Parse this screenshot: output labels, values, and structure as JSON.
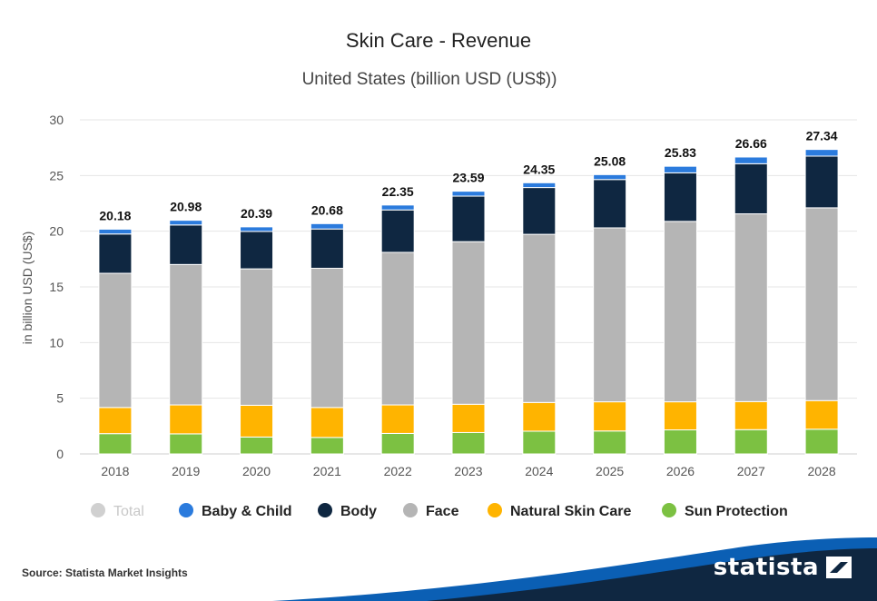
{
  "chart_data": {
    "type": "bar",
    "stacked": true,
    "title": "Skin Care - Revenue",
    "subtitle": "United States (billion USD (US$))",
    "xlabel": "",
    "ylabel": "in billion USD (US$)",
    "ylim": [
      0,
      30
    ],
    "yticks": [
      0,
      5,
      10,
      15,
      20,
      25,
      30
    ],
    "grid": true,
    "categories": [
      "2018",
      "2019",
      "2020",
      "2021",
      "2022",
      "2023",
      "2024",
      "2025",
      "2026",
      "2027",
      "2028"
    ],
    "totals": [
      "20.18",
      "20.98",
      "20.39",
      "20.68",
      "22.35",
      "23.59",
      "24.35",
      "25.08",
      "25.83",
      "26.66",
      "27.34"
    ],
    "series": [
      {
        "name": "Sun Protection",
        "color": "#7cc142",
        "values": [
          1.82,
          1.8,
          1.52,
          1.48,
          1.84,
          1.92,
          2.04,
          2.06,
          2.16,
          2.18,
          2.22
        ]
      },
      {
        "name": "Natural Skin Care",
        "color": "#ffb400",
        "values": [
          2.35,
          2.6,
          2.85,
          2.69,
          2.56,
          2.54,
          2.58,
          2.62,
          2.52,
          2.52,
          2.57
        ]
      },
      {
        "name": "Face",
        "color": "#b5b5b5",
        "values": [
          12.05,
          12.61,
          12.25,
          12.5,
          13.7,
          14.6,
          15.1,
          15.62,
          16.2,
          16.86,
          17.31
        ]
      },
      {
        "name": "Body",
        "color": "#0f2741",
        "values": [
          3.53,
          3.55,
          3.36,
          3.53,
          3.81,
          4.09,
          4.2,
          4.34,
          4.36,
          4.5,
          4.64
        ]
      },
      {
        "name": "Baby & Child",
        "color": "#2b7bdd",
        "values": [
          0.43,
          0.42,
          0.41,
          0.48,
          0.44,
          0.44,
          0.43,
          0.44,
          0.59,
          0.6,
          0.6
        ]
      }
    ],
    "legend": {
      "placement": "bottom",
      "items": [
        {
          "name": "Total",
          "color": "#d0d0d0",
          "muted": true
        },
        {
          "name": "Baby & Child",
          "color": "#2b7bdd",
          "muted": false
        },
        {
          "name": "Body",
          "color": "#0f2741",
          "muted": false
        },
        {
          "name": "Face",
          "color": "#b5b5b5",
          "muted": false
        },
        {
          "name": "Natural Skin Care",
          "color": "#ffb400",
          "muted": false
        },
        {
          "name": "Sun Protection",
          "color": "#7cc142",
          "muted": false
        }
      ]
    }
  },
  "footer": {
    "source": "Source: Statista Market Insights",
    "brand": "statista"
  },
  "colors": {
    "brand_blue": "#0b5fb4",
    "brand_navy": "#0f2741"
  }
}
